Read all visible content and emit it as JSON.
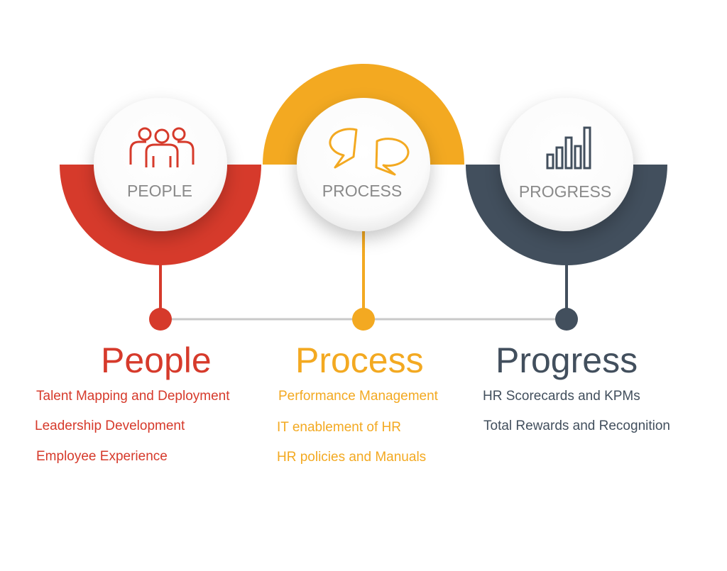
{
  "colors": {
    "people": "#d63a2b",
    "process": "#f3a921",
    "progress": "#424f5d",
    "label_gray": "#8a8a8a",
    "connector": "#c9c9c9"
  },
  "sections": [
    {
      "key": "people",
      "icon": "people-group-icon",
      "circle_label": "PEOPLE",
      "heading": "People",
      "items": [
        "Talent Mapping and Deployment",
        "Leadership Development",
        "Employee Experience"
      ]
    },
    {
      "key": "process",
      "icon": "chat-bubbles-icon",
      "circle_label": "PROCESS",
      "heading": "Process",
      "items": [
        "Performance Management",
        "IT enablement of HR",
        "HR policies and Manuals"
      ]
    },
    {
      "key": "progress",
      "icon": "bar-chart-icon",
      "circle_label": "PROGRESS",
      "heading": "Progress",
      "items": [
        "HR Scorecards and KPMs",
        "Total Rewards and Recognition"
      ]
    }
  ]
}
